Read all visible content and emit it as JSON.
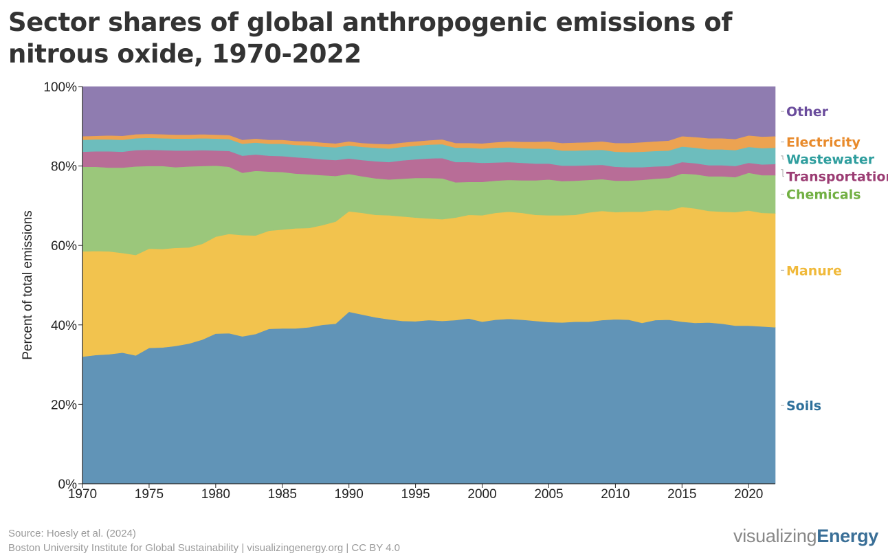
{
  "title": "Sector shares of global anthropogenic emissions of nitrous oxide, 1970-2022",
  "footer": {
    "source": "Source: Hoesly et al. (2024)",
    "credit": "Boston University Institute for Global Sustainability | visualizingenergy.org | CC BY 4.0",
    "brand_light": "visualizing",
    "brand_bold": "Energy"
  },
  "chart_data": {
    "type": "area",
    "stacked": true,
    "ylabel": "Percent of total emissions",
    "xlabel": "",
    "x": [
      1970,
      1971,
      1972,
      1973,
      1974,
      1975,
      1976,
      1977,
      1978,
      1979,
      1980,
      1981,
      1982,
      1983,
      1984,
      1985,
      1986,
      1987,
      1988,
      1989,
      1990,
      1991,
      1992,
      1993,
      1994,
      1995,
      1996,
      1997,
      1998,
      1999,
      2000,
      2001,
      2002,
      2003,
      2004,
      2005,
      2006,
      2007,
      2008,
      2009,
      2010,
      2011,
      2012,
      2013,
      2014,
      2015,
      2016,
      2017,
      2018,
      2019,
      2020,
      2021,
      2022
    ],
    "xlim": [
      1970,
      2022
    ],
    "ylim": [
      0,
      100
    ],
    "x_ticks": [
      1970,
      1975,
      1980,
      1985,
      1990,
      1995,
      2000,
      2005,
      2010,
      2015,
      2020
    ],
    "y_ticks": [
      0,
      20,
      40,
      60,
      80,
      100
    ],
    "y_tick_labels": [
      "0%",
      "20%",
      "40%",
      "60%",
      "80%",
      "100%"
    ],
    "series": [
      {
        "name": "Soils",
        "color": "#6194b7",
        "values": [
          32.0,
          32.4,
          32.6,
          33.0,
          32.3,
          34.2,
          34.3,
          34.7,
          35.3,
          36.3,
          37.8,
          37.9,
          37.1,
          37.7,
          39.0,
          39.1,
          39.1,
          39.4,
          40.0,
          40.3,
          43.3,
          42.6,
          41.9,
          41.4,
          41.0,
          40.9,
          41.2,
          41.0,
          41.2,
          41.6,
          40.8,
          41.3,
          41.5,
          41.3,
          41.0,
          40.7,
          40.6,
          40.8,
          40.8,
          41.2,
          41.4,
          41.3,
          40.5,
          41.2,
          41.3,
          40.8,
          40.5,
          40.6,
          40.3,
          39.8,
          39.8,
          39.6,
          39.4
        ]
      },
      {
        "name": "Manure",
        "color": "#f2c34e",
        "values": [
          26.5,
          26.2,
          25.9,
          25.1,
          25.3,
          25.0,
          24.8,
          24.7,
          24.2,
          24.1,
          24.4,
          25.0,
          25.5,
          24.8,
          24.7,
          24.9,
          25.2,
          25.0,
          25.1,
          25.7,
          25.3,
          25.6,
          25.8,
          26.2,
          26.3,
          26.1,
          25.6,
          25.6,
          25.8,
          26.1,
          26.8,
          26.9,
          27.0,
          26.9,
          26.7,
          26.9,
          27.0,
          26.9,
          27.5,
          27.5,
          27.0,
          27.2,
          28.0,
          27.7,
          27.5,
          28.9,
          28.8,
          28.1,
          28.2,
          28.6,
          29.0,
          28.6,
          28.7
        ]
      },
      {
        "name": "Chemicals",
        "color": "#9bc77b",
        "values": [
          21.3,
          21.2,
          21.1,
          21.5,
          22.3,
          20.8,
          20.9,
          20.3,
          20.4,
          19.6,
          17.9,
          16.9,
          15.7,
          16.3,
          14.9,
          14.5,
          13.8,
          13.5,
          12.6,
          11.5,
          9.4,
          9.2,
          9.2,
          9.0,
          9.5,
          10.0,
          10.2,
          10.3,
          8.9,
          8.3,
          8.4,
          8.1,
          8.0,
          8.2,
          8.7,
          9.0,
          8.6,
          8.6,
          8.2,
          8.0,
          7.9,
          7.8,
          8.0,
          7.9,
          8.2,
          8.4,
          8.6,
          8.7,
          8.9,
          8.8,
          9.5,
          9.5,
          9.6
        ]
      },
      {
        "name": "Transportation",
        "color": "#b86d97",
        "values": [
          3.8,
          3.9,
          4.1,
          4.0,
          4.1,
          4.1,
          4.0,
          4.2,
          4.0,
          4.0,
          3.8,
          4.0,
          4.3,
          4.1,
          4.0,
          4.0,
          4.1,
          4.1,
          4.0,
          4.0,
          3.9,
          4.1,
          4.3,
          4.4,
          4.6,
          4.7,
          4.9,
          5.1,
          5.1,
          5.0,
          4.8,
          4.6,
          4.5,
          4.4,
          4.2,
          4.0,
          3.9,
          3.8,
          3.7,
          3.6,
          3.5,
          3.4,
          3.2,
          3.1,
          3.0,
          2.9,
          2.8,
          2.8,
          2.8,
          2.8,
          2.5,
          2.7,
          2.8
        ]
      },
      {
        "name": "Wastewater",
        "color": "#6dbdbd",
        "values": [
          3.0,
          3.0,
          3.0,
          3.0,
          3.0,
          3.0,
          3.0,
          3.0,
          3.0,
          3.0,
          3.0,
          3.0,
          3.0,
          3.0,
          3.0,
          3.1,
          3.1,
          3.2,
          3.2,
          3.2,
          3.3,
          3.3,
          3.4,
          3.4,
          3.4,
          3.4,
          3.5,
          3.5,
          3.6,
          3.6,
          3.6,
          3.7,
          3.7,
          3.7,
          3.8,
          3.8,
          3.8,
          3.8,
          3.8,
          3.8,
          3.8,
          3.8,
          3.9,
          3.9,
          3.9,
          3.9,
          3.9,
          4.0,
          4.0,
          4.0,
          4.0,
          4.1,
          4.1
        ]
      },
      {
        "name": "Electricity",
        "color": "#eca351",
        "values": [
          0.9,
          0.9,
          1.0,
          1.0,
          1.0,
          1.0,
          1.0,
          1.0,
          1.0,
          1.0,
          1.0,
          1.0,
          1.0,
          1.0,
          1.0,
          1.0,
          1.0,
          1.0,
          1.0,
          1.0,
          1.0,
          1.0,
          1.0,
          1.1,
          1.1,
          1.1,
          1.1,
          1.2,
          1.2,
          1.2,
          1.3,
          1.4,
          1.5,
          1.6,
          1.7,
          1.8,
          1.9,
          2.0,
          2.0,
          2.1,
          2.2,
          2.3,
          2.4,
          2.4,
          2.5,
          2.6,
          2.7,
          2.8,
          2.8,
          2.8,
          2.9,
          2.9,
          2.9
        ]
      },
      {
        "name": "Other",
        "color": "#8f7cb0",
        "values": [
          12.5,
          12.4,
          12.3,
          12.4,
          12.0,
          11.9,
          12.0,
          12.1,
          12.1,
          12.0,
          12.1,
          12.2,
          13.4,
          13.1,
          13.4,
          13.4,
          13.7,
          13.8,
          14.1,
          14.3,
          13.8,
          14.2,
          14.4,
          14.5,
          14.1,
          13.8,
          13.5,
          13.3,
          14.2,
          14.2,
          14.3,
          14.0,
          13.8,
          13.9,
          13.9,
          13.8,
          14.2,
          14.1,
          14.0,
          13.8,
          14.2,
          14.2,
          14.0,
          13.8,
          13.6,
          12.5,
          12.7,
          13.0,
          13.0,
          13.2,
          12.3,
          12.6,
          12.5
        ]
      }
    ],
    "legend_placement": "right",
    "legend_colors": {
      "Other": "#6a4c9c",
      "Electricity": "#e88a2b",
      "Wastewater": "#2f9e9e",
      "Transportation": "#9b3c73",
      "Chemicals": "#72b043",
      "Manure": "#f0b93a",
      "Soils": "#2d6f9a"
    },
    "grid": false
  }
}
